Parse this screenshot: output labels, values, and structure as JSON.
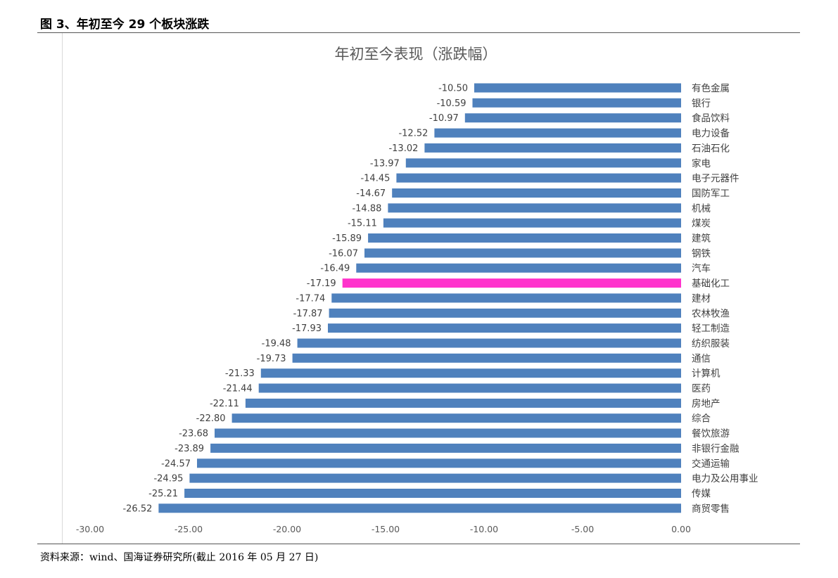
{
  "figure": {
    "caption": "图 3、年初至今 29 个板块涨跌",
    "source": "资料来源：wind、国海证券研究所(截止 2016 年 05 月 27 日)"
  },
  "chart_data": {
    "type": "bar",
    "orientation": "horizontal",
    "title": "年初至今表现（涨跌幅）",
    "xlabel": "",
    "ylabel": "",
    "xlim": [
      -30,
      0
    ],
    "x_ticks": [
      -30,
      -25,
      -20,
      -15,
      -10,
      -5,
      0
    ],
    "x_tick_labels": [
      "-30.00",
      "-25.00",
      "-20.00",
      "-15.00",
      "-10.00",
      "-5.00",
      "0.00"
    ],
    "grid": false,
    "legend": "none",
    "bar_color": "#4f81bd",
    "highlight_color": "#ff33cc",
    "highlight_category": "基础化工",
    "categories": [
      "有色金属",
      "银行",
      "食品饮料",
      "电力设备",
      "石油石化",
      "家电",
      "电子元器件",
      "国防军工",
      "机械",
      "煤炭",
      "建筑",
      "钢铁",
      "汽车",
      "基础化工",
      "建材",
      "农林牧渔",
      "轻工制造",
      "纺织服装",
      "通信",
      "计算机",
      "医药",
      "房地产",
      "综合",
      "餐饮旅游",
      "非银行金融",
      "交通运输",
      "电力及公用事业",
      "传媒",
      "商贸零售"
    ],
    "values": [
      -10.5,
      -10.59,
      -10.97,
      -12.52,
      -13.02,
      -13.97,
      -14.45,
      -14.67,
      -14.88,
      -15.11,
      -15.89,
      -16.07,
      -16.49,
      -17.19,
      -17.74,
      -17.87,
      -17.93,
      -19.48,
      -19.73,
      -21.33,
      -21.44,
      -22.11,
      -22.8,
      -23.68,
      -23.89,
      -24.57,
      -24.95,
      -25.21,
      -26.52
    ],
    "value_labels": [
      "-10.50",
      "-10.59",
      "-10.97",
      "-12.52",
      "-13.02",
      "-13.97",
      "-14.45",
      "-14.67",
      "-14.88",
      "-15.11",
      "-15.89",
      "-16.07",
      "-16.49",
      "-17.19",
      "-17.74",
      "-17.87",
      "-17.93",
      "-19.48",
      "-19.73",
      "-21.33",
      "-21.44",
      "-22.11",
      "-22.80",
      "-23.68",
      "-23.89",
      "-24.57",
      "-24.95",
      "-25.21",
      "-26.52"
    ]
  }
}
